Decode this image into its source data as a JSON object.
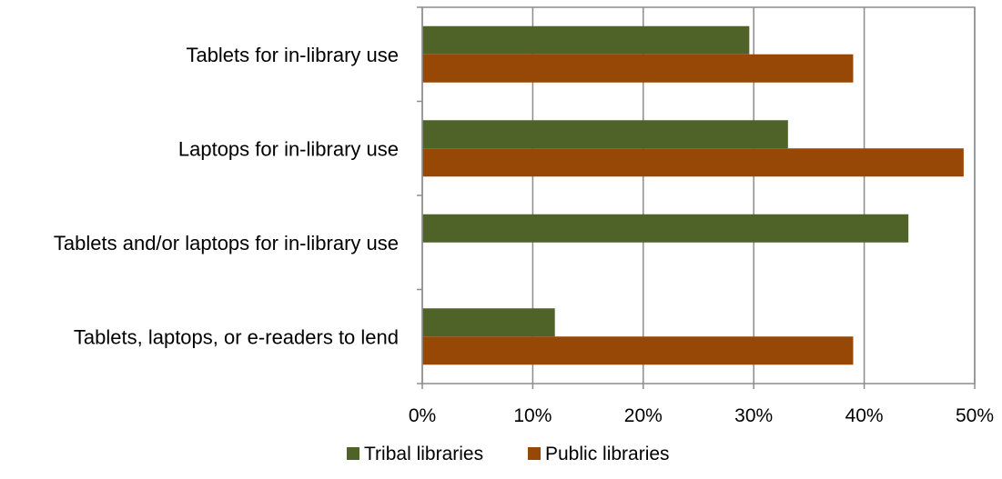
{
  "chart_data": {
    "type": "bar",
    "orientation": "horizontal",
    "categories": [
      "Tablets for in-library use",
      "Laptops for in-library use",
      "Tablets and/or laptops for in-library use",
      "Tablets, laptops, or e-readers to lend"
    ],
    "series": [
      {
        "name": "Tribal libraries",
        "color": "#4f6228",
        "values": [
          29.6,
          33.1,
          44,
          12
        ]
      },
      {
        "name": "Public libraries",
        "color": "#974706",
        "values": [
          39,
          49,
          0,
          39
        ]
      }
    ],
    "xlim": [
      0,
      50
    ],
    "xticks": [
      0,
      10,
      20,
      30,
      40,
      50
    ],
    "xtick_labels": [
      "0%",
      "10%",
      "20%",
      "30%",
      "40%",
      "50%"
    ],
    "grid": true,
    "legend_position": "bottom",
    "title": "",
    "xlabel": "",
    "ylabel": ""
  }
}
